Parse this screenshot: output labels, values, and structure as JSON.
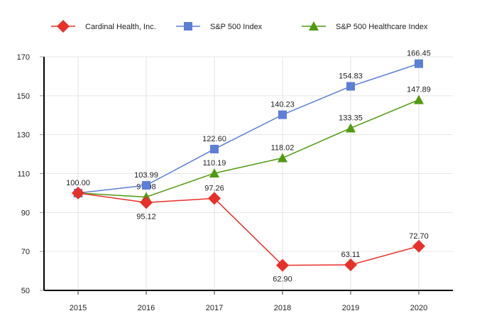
{
  "chart_data": {
    "type": "line",
    "title": "",
    "xlabel": "",
    "ylabel": "",
    "categories": [
      "2015",
      "2016",
      "2017",
      "2018",
      "2019",
      "2020"
    ],
    "ylim": [
      50,
      170
    ],
    "yticks": [
      "50",
      "70",
      "90",
      "110",
      "130",
      "150",
      "170"
    ],
    "grid": true,
    "legend_position": "top",
    "series": [
      {
        "name": "Cardinal Health, Inc.",
        "marker": "diamond",
        "color": "#e8302a",
        "values": [
          100.0,
          95.12,
          97.26,
          62.9,
          63.11,
          72.7
        ],
        "labels": [
          "100.00",
          "95.12",
          "97.26",
          "62.90",
          "63.11",
          "72.70"
        ]
      },
      {
        "name": "S&P 500 Index",
        "marker": "square",
        "color": "#5b7fd6",
        "values": [
          100.0,
          103.99,
          122.6,
          140.23,
          154.83,
          166.45
        ],
        "labels": [
          "",
          "103.99",
          "122.60",
          "140.23",
          "154.83",
          "166.45"
        ]
      },
      {
        "name": "S&P 500 Healthcare Index",
        "marker": "triangle",
        "color": "#4f9a0e",
        "values": [
          100.0,
          97.98,
          110.19,
          118.02,
          133.35,
          147.89
        ],
        "labels": [
          "",
          "97.98",
          "110.19",
          "118.02",
          "133.35",
          "147.89"
        ]
      }
    ]
  }
}
